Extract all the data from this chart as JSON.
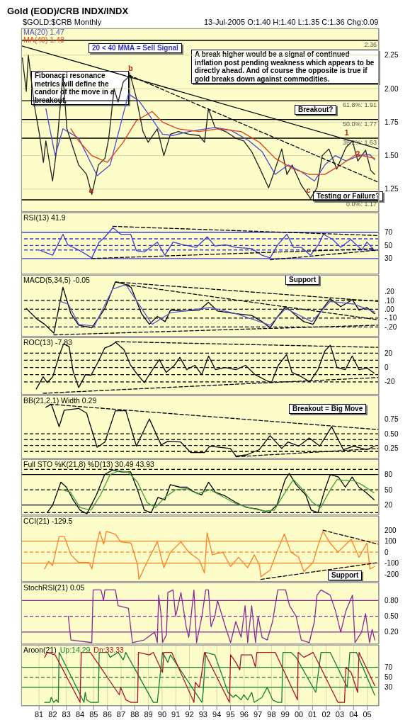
{
  "chart_data": [
    {
      "type": "line",
      "title": "Gold (EOD)/CRB INDX/INDX",
      "subtitle": "$GOLD:$CRB Monthly",
      "xlim": [
        1979.7,
        2005.85
      ],
      "ylim": [
        1.08,
        2.45
      ],
      "yticks": [
        1.25,
        {
          "value": 1.5,
          "label": "1.50"
        },
        1.75,
        {
          "value": 2,
          "label": "2.00"
        },
        2.25
      ],
      "tick_labels": "y",
      "grid": true,
      "legend": "top left",
      "series": [
        {
          "type": "line",
          "color": "#202020",
          "x": [
            1979.78,
            1980.07,
            1980.22,
            1980.65,
            1981.03,
            1981.32,
            1981.5,
            1981.99,
            1982.27,
            1982.75,
            1983.04,
            1983.42,
            1983.9,
            1984.48,
            1984.86,
            1985.34,
            1985.82,
            1986.1,
            1986.49,
            1986.78,
            1987.16,
            1987.68,
            1988.12,
            1988.6,
            1988.98,
            1989.65,
            1990.13,
            1990.61,
            1991.19,
            1991.95,
            1992.72,
            1993.1,
            1993.39,
            1993.87,
            1994.63,
            1995.4,
            1995.97,
            1996.55,
            1997.12,
            1997.79,
            1998.27,
            1998.75,
            1999.13,
            1999.51,
            2000.18,
            2000.85,
            2001.33,
            2001.71,
            2002.2,
            2002.77,
            2003.44,
            2003.92,
            2004.31,
            2004.88,
            2005.26,
            2005.54
          ],
          "values": [
            2.23,
            1.98,
            2.25,
            1.88,
            1.66,
            1.45,
            1.61,
            1.31,
            1.53,
            2.11,
            1.7,
            1.58,
            1.43,
            1.36,
            1.21,
            1.43,
            1.48,
            1.63,
            2.0,
            1.9,
            2.05,
            2.1,
            1.93,
            1.68,
            1.6,
            1.7,
            1.5,
            1.66,
            1.68,
            1.66,
            1.65,
            1.6,
            1.85,
            1.71,
            1.68,
            1.63,
            1.61,
            1.53,
            1.41,
            1.26,
            1.4,
            1.55,
            1.36,
            1.43,
            1.28,
            1.18,
            1.26,
            1.5,
            1.55,
            1.4,
            1.56,
            1.61,
            1.46,
            1.54,
            1.39,
            1.36
          ]
        },
        {
          "type": "line",
          "name": "MA(20) 1.47",
          "color": "#4a4ad0",
          "x": [
            1981.5,
            1982.18,
            1982.75,
            1983.9,
            1985.25,
            1986.2,
            1987.54,
            1988.3,
            1989.07,
            1990.03,
            1990.8,
            1991.95,
            1993.87,
            1995.02,
            1996.36,
            1997.31,
            1998.27,
            1999.23,
            2000.18,
            2001.14,
            2001.9,
            2002.67,
            2003.44,
            2004.4,
            2005.17,
            2005.54
          ],
          "values": [
            1.85,
            1.5,
            1.7,
            1.63,
            1.35,
            1.43,
            1.96,
            1.91,
            1.8,
            1.66,
            1.65,
            1.68,
            1.71,
            1.69,
            1.61,
            1.53,
            1.36,
            1.43,
            1.38,
            1.31,
            1.43,
            1.5,
            1.46,
            1.5,
            1.51,
            1.47
          ]
        },
        {
          "type": "line",
          "name": "MA(40) 1.48",
          "color": "#e03a1e",
          "x": [
            1983.33,
            1983.9,
            1984.86,
            1986.0,
            1987.16,
            1988.12,
            1989.27,
            1990.03,
            1991.19,
            1992.72,
            1994.06,
            1995.78,
            1997.12,
            1998.27,
            1999.61,
            2000.76,
            2001.9,
            2003.06,
            2004.21,
            2005.54
          ],
          "values": [
            1.7,
            1.61,
            1.5,
            1.45,
            1.6,
            1.76,
            1.83,
            1.75,
            1.7,
            1.68,
            1.7,
            1.68,
            1.6,
            1.48,
            1.4,
            1.36,
            1.36,
            1.43,
            1.51,
            1.48
          ]
        },
        {
          "type": "line",
          "color": "#000000",
          "x": [
            1979.7,
            2005.85
          ],
          "values": [
            2.32,
            1.55
          ]
        },
        {
          "type": "line",
          "color": "#000000",
          "line_style": "dashed",
          "x": [
            1987.6,
            2005.85
          ],
          "values": [
            2.1,
            1.3
          ]
        }
      ],
      "ref_lines": [
        {
          "axis": "y",
          "value": 2.36,
          "label": "2.36",
          "color": "#000000"
        },
        {
          "axis": "y",
          "value": 1.91,
          "label": "61.8%: 1.91",
          "color": "#000000"
        },
        {
          "axis": "y",
          "value": 1.77,
          "label": "50.0%: 1.77",
          "color": "#000000"
        },
        {
          "axis": "y",
          "value": 1.63,
          "label": "38.2%: 1.63",
          "color": "#000000"
        },
        {
          "axis": "y",
          "value": 1.17,
          "label": "0.0%: 1.17",
          "color": "#000000"
        }
      ],
      "annotations": [
        "13-Jul-2005 O:1.40 H:1.40 L:1.35 C:1.36 Chg:0.09",
        "20 < 40 MMA = Sell Signal",
        "A break higher would be a signal of continued inflation post pending weakness which appears to be directly ahead. And of course the opposite is true if gold breaks down against commodities.",
        "Fibonacci resonance metrics will define the candor of the move in a breakout.",
        "Breakout?",
        "Testing or Failure?",
        {
          "text": "a",
          "x": 1984.8,
          "y": 1.19
        },
        {
          "text": "b",
          "x": 1987.68,
          "y": 2.1
        },
        {
          "text": "c",
          "x": 2000.7,
          "y": 1.19
        },
        {
          "text": "1",
          "x": 2003.5,
          "y": 1.62
        },
        {
          "text": "2",
          "x": 2004.31,
          "y": 1.46
        }
      ]
    },
    {
      "type": "line",
      "title": "RSI(13) 41.9",
      "xlim": [
        1979.7,
        2005.85
      ],
      "ylim": [
        6,
        100
      ],
      "yticks": [
        30,
        50,
        70
      ],
      "tick_labels": "y",
      "grid": "x",
      "series": [
        {
          "type": "line",
          "color": "#3a3ad6",
          "x": [
            1981.0,
            1981.99,
            1982.75,
            1983.1,
            1983.9,
            1984.86,
            1985.4,
            1985.82,
            1986.4,
            1986.97,
            1987.7,
            1988.12,
            1988.7,
            1989.65,
            1990.2,
            1990.8,
            1991.57,
            1992.5,
            1993.3,
            1993.87,
            1994.63,
            1995.4,
            1996.55,
            1997.3,
            1997.9,
            1998.46,
            1999.13,
            1999.6,
            2000.18,
            2000.85,
            2001.43,
            2001.8,
            2002.48,
            2003.06,
            2003.8,
            2004.6,
            2004.98,
            2005.54
          ],
          "values": [
            43,
            35,
            67,
            51,
            43,
            31,
            55,
            63,
            77,
            67,
            67,
            42,
            40,
            55,
            35,
            55,
            51,
            47,
            63,
            49,
            51,
            47,
            45,
            35,
            31,
            51,
            67,
            47,
            47,
            35,
            51,
            67,
            59,
            47,
            59,
            43,
            55,
            41.9
          ]
        },
        {
          "type": "line",
          "color": "#000000",
          "line_style": "dashed",
          "x": [
            1986.4,
            2005.85
          ],
          "values": [
            79,
            65
          ]
        },
        {
          "type": "line",
          "color": "#000000",
          "line_style": "dashed",
          "x": [
            1984.86,
            2005.55
          ],
          "values": [
            30,
            45
          ]
        },
        {
          "type": "line",
          "color": "#000000",
          "line_style": "dashed",
          "x": [
            1997.9,
            2005.85
          ],
          "values": [
            28,
            43
          ]
        }
      ],
      "ref_lines": [
        {
          "axis": "y",
          "value": 70,
          "color": "#3a3ad6"
        },
        {
          "axis": "y",
          "value": 30,
          "color": "#3a3ad6"
        },
        {
          "axis": "y",
          "value": 60,
          "color": "#3a3ad6",
          "line_style": "dashed"
        },
        {
          "axis": "y",
          "value": 50,
          "color": "#3a3ad6",
          "line_style": "dashed"
        },
        {
          "axis": "y",
          "value": 43,
          "color": "#3a3ad6",
          "line_style": "dashed"
        }
      ]
    },
    {
      "type": "line",
      "title": "MACD(5,34,5) -0.05",
      "xlim": [
        1979.7,
        2005.85
      ],
      "ylim": [
        -0.31,
        0.39
      ],
      "yticks": [
        {
          "value": 0.2,
          "label": ".20"
        },
        {
          "value": 0.1,
          "label": ".10"
        },
        {
          "value": 0,
          "label": ".00"
        },
        {
          "value": -0.1,
          "label": "-.10"
        },
        {
          "value": -0.2,
          "label": "-.20"
        }
      ],
      "tick_labels": "y",
      "grid": "x",
      "series": [
        {
          "type": "line",
          "color": "#000000",
          "x": [
            1980.07,
            1980.84,
            1981.41,
            1982.08,
            1982.75,
            1983.33,
            1983.9,
            1984.86,
            1985.82,
            1986.58,
            1987.16,
            1987.73,
            1988.5,
            1989.07,
            1989.65,
            1990.22,
            1990.61,
            1991.57,
            1992.72,
            1993.39,
            1994.06,
            1995.4,
            1996.55,
            1997.31,
            1997.9,
            1998.46,
            1999.04,
            1999.8,
            2000.37,
            2001.04,
            2001.62,
            2002.29,
            2003.06,
            2003.92,
            2004.4,
            2004.98,
            2005.54
          ],
          "values": [
            0.01,
            -0.11,
            -0.17,
            -0.27,
            0.25,
            -0.05,
            -0.18,
            -0.21,
            0.01,
            0.31,
            0.29,
            0.25,
            -0.05,
            -0.17,
            -0.08,
            -0.14,
            -0.01,
            -0.02,
            -0.01,
            0.08,
            -0.02,
            -0.05,
            -0.07,
            -0.14,
            -0.21,
            -0.08,
            0.03,
            -0.07,
            -0.14,
            -0.17,
            -0.02,
            0.12,
            0.03,
            0.11,
            -0.01,
            0.02,
            -0.05
          ]
        },
        {
          "type": "line",
          "color": "#5a5ad0",
          "x": [
            1982.56,
            1983.14,
            1983.9,
            1985.05,
            1986.39,
            1987.35,
            1988.5,
            1989.27,
            1990.61,
            1993.49,
            1995.4,
            1997.9,
            1999.04,
            2000.95,
            2002.29,
            2004.02,
            2005.54
          ],
          "values": [
            0.09,
            0.06,
            -0.17,
            -0.19,
            0.23,
            0.28,
            0.01,
            -0.17,
            -0.04,
            0.02,
            -0.05,
            -0.18,
            0.01,
            -0.14,
            0.09,
            0.06,
            -0.03
          ]
        },
        {
          "type": "line",
          "color": "#000000",
          "line_style": "dashed",
          "x": [
            1986.58,
            2005.85
          ],
          "values": [
            0.31,
            0.09
          ]
        },
        {
          "type": "line",
          "color": "#000000",
          "line_style": "dashed",
          "x": [
            1987.35,
            2005.85
          ],
          "values": [
            0.28,
            -0.12
          ]
        },
        {
          "type": "line",
          "color": "#000000",
          "line_style": "dashed",
          "x": [
            1982.08,
            2005.85
          ],
          "values": [
            -0.29,
            -0.18
          ]
        }
      ],
      "ref_lines": [
        {
          "axis": "y",
          "value": 0.1,
          "color": "#000000",
          "line_style": "dashed"
        },
        {
          "axis": "y",
          "value": 0,
          "color": "#000000",
          "line_style": "dashed"
        },
        {
          "axis": "y",
          "value": -0.1,
          "color": "#000000",
          "line_style": "dashed"
        },
        {
          "axis": "y",
          "value": -0.2,
          "color": "#000000",
          "line_style": "dashed"
        }
      ],
      "annotations": [
        "Support"
      ]
    },
    {
      "type": "line",
      "title": "ROC(13) -7.83",
      "xlim": [
        1979.7,
        2005.85
      ],
      "ylim": [
        -38,
        42
      ],
      "yticks": [
        -20,
        0,
        20
      ],
      "tick_labels": "y",
      "grid": "x",
      "series": [
        {
          "type": "line",
          "color": "#000000",
          "x": [
            1980.8,
            1981.3,
            1981.6,
            1982.0,
            1982.5,
            1982.8,
            1983.2,
            1983.5,
            1983.9,
            1984.4,
            1984.8,
            1985.3,
            1985.8,
            1986.3,
            1986.6,
            1987.2,
            1987.7,
            1988.2,
            1988.7,
            1989.4,
            1989.8,
            1990.3,
            1990.9,
            1991.3,
            1991.8,
            1992.4,
            1992.9,
            1993.4,
            1993.9,
            1994.6,
            1995.4,
            1996.1,
            1996.8,
            1997.6,
            1998.0,
            1998.5,
            1999.1,
            1999.5,
            2000.2,
            2000.8,
            2001.4,
            2001.9,
            2002.3,
            2002.8,
            2003.4,
            2003.9,
            2004.4,
            2005.0,
            2005.5
          ],
          "values": [
            -30,
            -13,
            -21,
            -13,
            18,
            33,
            29,
            -6,
            -28,
            -10,
            -11,
            7,
            27,
            31,
            35,
            25,
            3,
            -10,
            -21,
            0,
            11,
            -7,
            3,
            14,
            -3,
            3,
            -10,
            16,
            -3,
            0,
            -3,
            3,
            -10,
            -18,
            -21,
            3,
            18,
            -7,
            -13,
            -20,
            -3,
            23,
            31,
            0,
            -3,
            16,
            -3,
            -1,
            -7.83
          ]
        },
        {
          "type": "line",
          "color": "#000000",
          "line_style": "dashed",
          "x": [
            1986.6,
            2005.85
          ],
          "values": [
            36,
            28
          ]
        },
        {
          "type": "line",
          "color": "#000000",
          "line_style": "dashed",
          "x": [
            1981.3,
            2005.85
          ],
          "values": [
            -36,
            -14
          ]
        }
      ],
      "ref_lines": [
        {
          "axis": "y",
          "value": 20,
          "color": "#000000",
          "line_style": "dashed"
        },
        {
          "axis": "y",
          "value": 10,
          "color": "#000000",
          "line_style": "dashed"
        },
        {
          "axis": "y",
          "value": 0,
          "color": "#000000",
          "line_style": "dashed"
        },
        {
          "axis": "y",
          "value": -10,
          "color": "#000000",
          "line_style": "dashed"
        },
        {
          "axis": "y",
          "value": -20,
          "color": "#000000",
          "line_style": "dashed"
        }
      ]
    },
    {
      "type": "line",
      "title": "BB(21,2.1) Width 0.29",
      "xlim": [
        1979.7,
        2005.85
      ],
      "ylim": [
        0.08,
        1.15
      ],
      "yticks": [
        {
          "value": 0.25,
          "label": "0.25"
        },
        {
          "value": 0.5,
          "label": "0.50"
        },
        {
          "value": 0.75,
          "label": "0.75"
        }
      ],
      "tick_labels": "y",
      "grid": "x",
      "series": [
        {
          "type": "line",
          "color": "#000000",
          "x": [
            1981.5,
            1981.9,
            1982.47,
            1982.85,
            1983.9,
            1984.48,
            1985.25,
            1985.82,
            1986.58,
            1987.35,
            1988.12,
            1989.07,
            1989.93,
            1990.4,
            1991.36,
            1992.1,
            1993.1,
            1993.48,
            1995.0,
            1995.4,
            1996.17,
            1997.1,
            1997.9,
            1998.75,
            1999.2,
            2000.0,
            2000.76,
            2001.53,
            2002.4,
            2003.25,
            2004.0,
            2004.98,
            2005.54
          ],
          "values": [
            0.95,
            1.0,
            0.62,
            0.9,
            0.93,
            0.85,
            0.27,
            0.36,
            0.89,
            0.89,
            0.29,
            0.75,
            0.31,
            0.37,
            0.36,
            0.18,
            0.18,
            0.29,
            0.25,
            0.12,
            0.14,
            0.23,
            0.47,
            0.25,
            0.36,
            0.29,
            0.43,
            0.29,
            0.62,
            0.23,
            0.29,
            0.23,
            0.29
          ]
        },
        {
          "type": "line",
          "color": "#000000",
          "line_style": "dashed",
          "x": [
            1981.8,
            2005.85
          ],
          "values": [
            1.0,
            0.57
          ]
        },
        {
          "type": "line",
          "color": "#000000",
          "line_style": "dashed",
          "x": [
            1995.4,
            2005.85
          ],
          "values": [
            0.11,
            0.25
          ]
        }
      ],
      "ref_lines": [
        {
          "axis": "y",
          "value": 0.5,
          "color": "#000000",
          "line_style": "dashed"
        },
        {
          "axis": "y",
          "value": 0.4,
          "color": "#000000",
          "line_style": "dashed"
        },
        {
          "axis": "y",
          "value": 0.3,
          "color": "#000000",
          "line_style": "dashed"
        },
        {
          "axis": "y",
          "value": 0.2,
          "color": "#000000",
          "line_style": "dashed"
        }
      ],
      "annotations": [
        "Breakout = Big Move"
      ]
    },
    {
      "type": "line",
      "title": "Full STO %K(21,8) %D(13) 30.49 43.93",
      "xlim": [
        1979.7,
        2005.85
      ],
      "ylim": [
        0,
        110
      ],
      "yticks": [
        20,
        50,
        80
      ],
      "tick_labels": "y",
      "grid": "x",
      "series": [
        {
          "type": "line",
          "color": "#000000",
          "x": [
            1981.6,
            1982.0,
            1982.6,
            1983.0,
            1983.5,
            1984.0,
            1984.5,
            1985.2,
            1985.8,
            1986.4,
            1987.0,
            1987.7,
            1988.2,
            1988.7,
            1989.2,
            1989.7,
            1990.2,
            1990.6,
            1991.3,
            1991.8,
            1992.4,
            1992.9,
            1993.4,
            1993.9,
            1994.6,
            1995.4,
            1996.2,
            1997.0,
            1997.8,
            1998.4,
            1999.0,
            1999.3,
            1999.8,
            2000.5,
            2000.9,
            2001.4,
            2001.9,
            2002.3,
            2002.9,
            2003.4,
            2003.9,
            2004.4,
            2004.9,
            2005.5
          ],
          "values": [
            5,
            20,
            65,
            55,
            30,
            10,
            3,
            40,
            80,
            89,
            85,
            85,
            50,
            10,
            5,
            35,
            30,
            60,
            55,
            55,
            45,
            40,
            65,
            45,
            38,
            25,
            15,
            12,
            5,
            20,
            70,
            82,
            60,
            40,
            10,
            5,
            50,
            80,
            75,
            55,
            75,
            55,
            45,
            30.49
          ]
        },
        {
          "type": "line",
          "color": "#3ca03c",
          "x": [
            1982.7,
            1983.3,
            1984.0,
            1984.8,
            1985.5,
            1986.2,
            1986.8,
            1987.5,
            1988.2,
            1988.9,
            1989.5,
            1990.2,
            1991.0,
            1991.8,
            1992.6,
            1993.5,
            1994.2,
            1995.2,
            1996.3,
            1997.5,
            1998.2,
            1999.0,
            1999.6,
            2000.3,
            2001.0,
            2001.6,
            2002.3,
            2002.8,
            2003.4,
            2004.0,
            2004.6,
            2005.5
          ],
          "values": [
            50,
            45,
            15,
            10,
            40,
            80,
            87,
            85,
            65,
            25,
            15,
            35,
            50,
            52,
            42,
            50,
            40,
            25,
            15,
            8,
            10,
            45,
            70,
            50,
            25,
            15,
            50,
            70,
            68,
            68,
            60,
            43.93
          ]
        }
      ],
      "ref_lines": [
        {
          "axis": "y",
          "value": 80,
          "color": "#000000"
        },
        {
          "axis": "y",
          "value": 50,
          "color": "#000000",
          "line_style": "dashed"
        },
        {
          "axis": "y",
          "value": 20,
          "color": "#000000"
        },
        {
          "axis": "y",
          "value": 90,
          "color": "#000000",
          "line_style": "dashed"
        },
        {
          "axis": "y",
          "value": 5,
          "color": "#000000",
          "line_style": "dashed"
        }
      ]
    },
    {
      "type": "line",
      "title": "CCI(21) -129.5",
      "xlim": [
        1979.7,
        2005.85
      ],
      "ylim": [
        -270,
        330
      ],
      "yticks": [
        -200,
        -100,
        0,
        100,
        200
      ],
      "tick_labels": "y",
      "grid": "x",
      "series": [
        {
          "type": "line",
          "color": "#ff7f24",
          "x": [
            1981.41,
            1981.7,
            1981.99,
            1982.47,
            1982.85,
            1983.33,
            1983.9,
            1984.67,
            1984.86,
            1985.25,
            1985.44,
            1985.73,
            1985.92,
            1986.58,
            1986.97,
            1987.73,
            1988.21,
            1988.31,
            1988.88,
            1989.65,
            1990.13,
            1990.61,
            1991.38,
            1991.95,
            1992.72,
            1993.1,
            1993.29,
            1993.67,
            1994.44,
            1995.0,
            1995.59,
            1996.26,
            1996.74,
            1997.12,
            1997.22,
            1997.89,
            1998.46,
            1998.94,
            1999.42,
            1999.99,
            2000.37,
            2001.04,
            2001.43,
            2001.76,
            2002.29,
            2002.86,
            2003.82,
            2004.4,
            2004.98,
            2005.2,
            2005.54
          ],
          "values": [
            -153,
            -83,
            -123,
            142,
            142,
            -24,
            -94,
            -94,
            -153,
            94,
            189,
            71,
            189,
            165,
            94,
            83,
            -118,
            -248,
            -94,
            94,
            -142,
            0,
            94,
            0,
            -71,
            -189,
            177,
            -24,
            0,
            -130,
            -47,
            -142,
            -24,
            -118,
            -224,
            -165,
            24,
            165,
            0,
            -47,
            -177,
            -94,
            71,
            189,
            83,
            0,
            118,
            -47,
            83,
            -153,
            -129.5
          ]
        },
        {
          "type": "line",
          "color": "#000000",
          "line_style": "dashed",
          "x": [
            2001.76,
            2005.85
          ],
          "values": [
            200,
            71
          ]
        },
        {
          "type": "line",
          "color": "#000000",
          "line_style": "dashed",
          "x": [
            1997.22,
            2005.85
          ],
          "values": [
            -248,
            -94
          ]
        }
      ],
      "ref_lines": [
        {
          "axis": "y",
          "value": 100,
          "color": "#ff7f24"
        },
        {
          "axis": "y",
          "value": 0,
          "color": "#ff7f24",
          "line_style": "dashed"
        },
        {
          "axis": "y",
          "value": -100,
          "color": "#ff7f24"
        }
      ],
      "annotations": [
        "Support"
      ]
    },
    {
      "type": "line",
      "title": "StochRSI(21) 0.05",
      "xlim": [
        1979.7,
        2005.85
      ],
      "ylim": [
        -0.03,
        1.14
      ],
      "yticks": [
        {
          "value": 0.2,
          "label": "0.20"
        },
        {
          "value": 0.5,
          "label": "0.50"
        },
        {
          "value": 0.8,
          "label": "0.80"
        }
      ],
      "tick_labels": "y",
      "grid": "x",
      "series": [
        {
          "type": "line",
          "color": "#8a2a9a",
          "x": [
            1983.14,
            1983.33,
            1984.86,
            1984.96,
            1985.53,
            1985.72,
            1985.82,
            1986.58,
            1986.78,
            1987.54,
            1987.83,
            1988.69,
            1989.45,
            1989.65,
            1989.75,
            1989.94,
            1990.03,
            1990.32,
            1990.42,
            1990.8,
            1990.99,
            1991.38,
            1991.76,
            1991.95,
            1992.33,
            1992.52,
            1992.91,
            1993.19,
            1993.39,
            1993.58,
            1993.86,
            1994.05,
            1994.63,
            1995.01,
            1995.39,
            1995.78,
            1996.07,
            1996.26,
            1996.55,
            1996.83,
            1997.02,
            1997.31,
            1997.69,
            1998.08,
            1998.46,
            1999.03,
            1999.32,
            1999.8,
            2000.18,
            2000.76,
            2001.14,
            2001.33,
            2001.62,
            2002.29,
            2002.68,
            2003.06,
            2003.44,
            2003.92,
            2004.11,
            2004.59,
            2004.88,
            2005.17,
            2005.36,
            2005.55
          ],
          "values": [
            0.5,
            0.05,
            0,
            1,
            1,
            0.8,
            1,
            1,
            0.7,
            0.65,
            0,
            0.05,
            0.2,
            0,
            0.9,
            0.5,
            0,
            0.15,
            0.95,
            1,
            0.5,
            0.95,
            0.3,
            0.1,
            1,
            0,
            0.5,
            1,
            1,
            0.3,
            0.5,
            0.8,
            0.3,
            0,
            0.4,
            0.1,
            0.7,
            0,
            0.7,
            0,
            0.5,
            0.1,
            0.05,
            0.4,
            1,
            1,
            0.7,
            0.5,
            0.05,
            0,
            0.4,
            0.9,
            1,
            0.9,
            0.6,
            0.2,
            0.6,
            0.9,
            0,
            0.2,
            0.55,
            0,
            0.25,
            0.05
          ]
        }
      ],
      "ref_lines": [
        {
          "axis": "y",
          "value": 0.8,
          "color": "#8a2a9a"
        },
        {
          "axis": "y",
          "value": 0.5,
          "color": "#8a2a9a",
          "line_style": "dashed"
        },
        {
          "axis": "y",
          "value": 0.2,
          "color": "#8a2a9a"
        }
      ]
    },
    {
      "type": "line",
      "title": "Aroon(21)",
      "xlim": [
        1979.7,
        2005.85
      ],
      "xticks": [
        {
          "value": 1981,
          "label": "81"
        },
        {
          "value": 1982,
          "label": "82"
        },
        {
          "value": 1983,
          "label": "83"
        },
        {
          "value": 1984,
          "label": "84"
        },
        {
          "value": 1985,
          "label": "85"
        },
        {
          "value": 1986,
          "label": "86"
        },
        {
          "value": 1987,
          "label": "87"
        },
        {
          "value": 1988,
          "label": "88"
        },
        {
          "value": 1989,
          "label": "89"
        },
        {
          "value": 1990,
          "label": "90"
        },
        {
          "value": 1991,
          "label": "91"
        },
        {
          "value": 1992,
          "label": "92"
        },
        {
          "value": 1993,
          "label": "93"
        },
        {
          "value": 1994,
          "label": "94"
        },
        {
          "value": 1995,
          "label": "95"
        },
        {
          "value": 1996,
          "label": "96"
        },
        {
          "value": 1997,
          "label": "97"
        },
        {
          "value": 1998,
          "label": "98"
        },
        {
          "value": 1999,
          "label": "99"
        },
        {
          "value": 2000,
          "label": "00"
        },
        {
          "value": 2001,
          "label": "01"
        },
        {
          "value": 2002,
          "label": "02"
        },
        {
          "value": 2003,
          "label": "03"
        },
        {
          "value": 2004,
          "label": "04"
        },
        {
          "value": 2005,
          "label": "05"
        }
      ],
      "ylim": [
        -7,
        115
      ],
      "yticks": [
        30,
        50,
        70
      ],
      "grid": "x",
      "legend": "top left",
      "series": [
        {
          "type": "line",
          "name": "Up:14.29",
          "color": "#118034",
          "x": [
            1981.41,
            1981.8,
            1981.89,
            1982.08,
            1982.27,
            1982.41,
            1982.47,
            1984.29,
            1984.38,
            1984.48,
            1984.76,
            1985.34,
            1985.4,
            1986.01,
            1986.2,
            1986.78,
            1987.16,
            1987.35,
            1987.54,
            1989.36,
            1989.65,
            1990.03,
            1990.42,
            1990.61,
            1992.91,
            1993.0,
            1993.19,
            1993.86,
            1994.82,
            1995.2,
            1995.39,
            1995.78,
            1995.97,
            1996.26,
            1996.55,
            1996.74,
            1997.31,
            1997.69,
            1998.08,
            1998.46,
            1998.75,
            1998.84,
            1999.42,
            1999.8,
            2001.24,
            2001.62,
            2002.29,
            2003.54,
            2003.73,
            2004.21,
            2005.55
          ],
          "values": [
            0,
            0,
            10,
            0,
            5,
            0,
            100,
            0,
            20,
            5,
            0,
            0,
            100,
            100,
            90,
            100,
            85,
            100,
            90,
            0,
            0,
            100,
            80,
            95,
            0,
            20,
            100,
            95,
            20,
            10,
            15,
            5,
            15,
            5,
            20,
            0,
            10,
            30,
            5,
            0,
            0,
            100,
            100,
            90,
            20,
            100,
            100,
            30,
            100,
            100,
            14.29
          ]
        },
        {
          "type": "line",
          "name": "Dn:33.33",
          "color": "#b0102c",
          "x": [
            1981.41,
            1981.6,
            1982.18,
            1984.0,
            1984.09,
            1984.76,
            1986.87,
            1986.97,
            1987.35,
            1987.73,
            1988.21,
            1988.27,
            1989.07,
            1989.36,
            1990.03,
            1990.13,
            1990.7,
            1992.33,
            1992.43,
            1992.72,
            1992.91,
            1993.1,
            1994.92,
            1995.01,
            1995.39,
            1995.68,
            1995.78,
            1996.55,
            1996.83,
            1996.93,
            1998.27,
            1999.9,
            1999.95,
            2000.37,
            2001.04,
            2002.86,
            2003.34,
            2003.44,
            2003.82,
            2004.3,
            2004.4,
            2005.55
          ],
          "values": [
            90,
            100,
            95,
            0,
            100,
            100,
            15,
            30,
            5,
            0,
            0,
            100,
            95,
            100,
            60,
            100,
            100,
            0,
            40,
            30,
            60,
            100,
            0,
            95,
            80,
            65,
            95,
            95,
            70,
            100,
            100,
            5,
            100,
            90,
            100,
            0,
            0,
            70,
            60,
            20,
            100,
            33.33
          ]
        }
      ],
      "ref_lines": [
        {
          "axis": "y",
          "value": 70,
          "color": "#118034"
        },
        {
          "axis": "y",
          "value": 50,
          "color": "#118034",
          "line_style": "dashed"
        },
        {
          "axis": "y",
          "value": 30,
          "color": "#118034"
        }
      ]
    }
  ]
}
